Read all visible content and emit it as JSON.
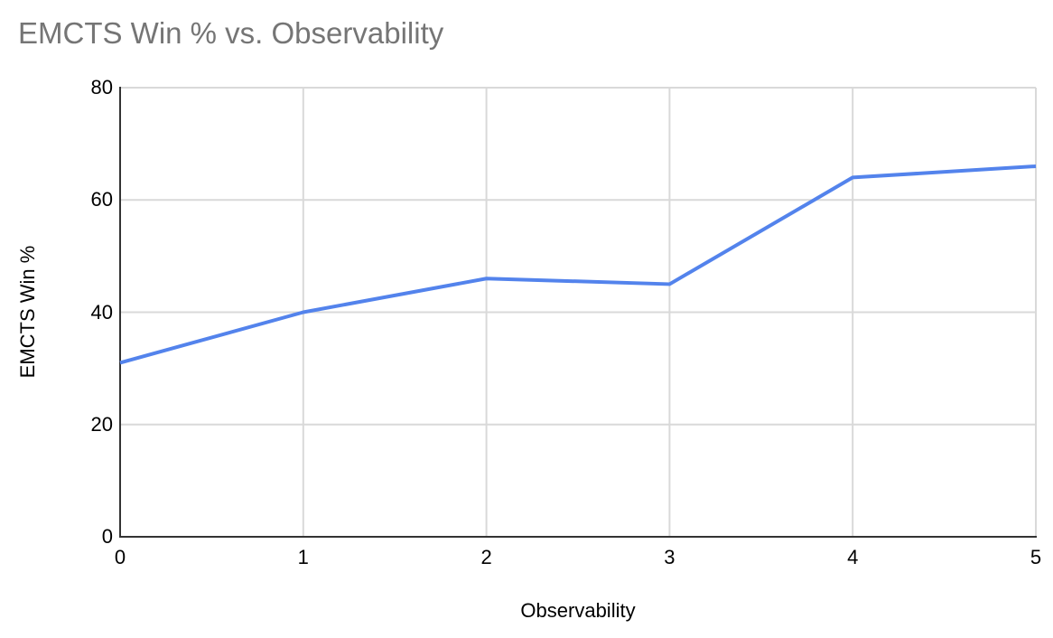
{
  "page": {
    "background": "#ffffff"
  },
  "chart_data": {
    "type": "line",
    "title": "EMCTS Win % vs. Observability",
    "xlabel": "Observability",
    "ylabel": "EMCTS Win %",
    "x": [
      0,
      1,
      2,
      3,
      4,
      5
    ],
    "series": [
      {
        "name": "EMCTS Win %",
        "color": "#5383ec",
        "values": [
          31,
          40,
          46,
          45,
          64,
          66
        ]
      }
    ],
    "xlim": [
      0,
      5
    ],
    "ylim": [
      0,
      80
    ],
    "x_ticks": [
      0,
      1,
      2,
      3,
      4,
      5
    ],
    "y_ticks": [
      0,
      20,
      40,
      60,
      80
    ],
    "grid": true,
    "legend_position": "none"
  },
  "colors": {
    "line": "#5383ec",
    "title_text": "#757575",
    "axis_line": "#333333",
    "gridline": "#d9d9d9",
    "tick_text": "#000000"
  }
}
